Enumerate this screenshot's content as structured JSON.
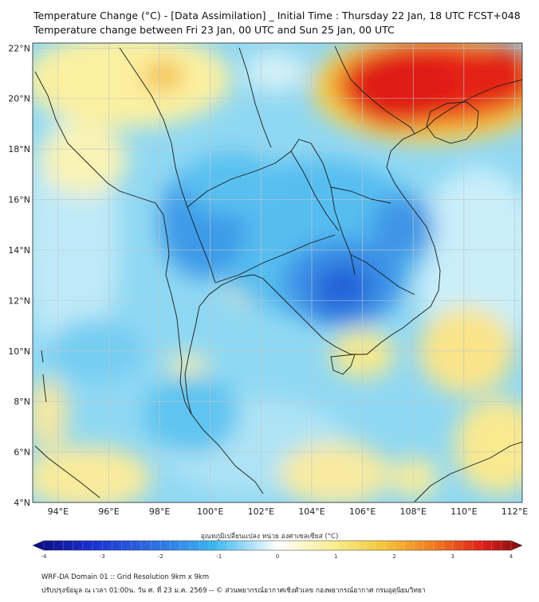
{
  "title": "Temperature Change (°C) - [Data Assimilation] _ Initial Time : Thursday 22 Jan, 18 UTC FCST+048",
  "subtitle": "Temperature change between Fri 23 Jan, 00 UTC and Sun 25 Jan, 00 UTC",
  "colorbar": {
    "title": "อุณหภูมิเปลี่ยนแปลง หน่วย องศาเซลเซียส (°C)",
    "min": -4,
    "max": 4,
    "ticks": [
      "-4",
      "-3",
      "-2",
      "-1",
      "0",
      "1",
      "2",
      "3",
      "4"
    ]
  },
  "axes": {
    "lon_labels": [
      "94°E",
      "96°E",
      "98°E",
      "100°E",
      "102°E",
      "104°E",
      "106°E",
      "108°E",
      "110°E",
      "112°E"
    ],
    "lat_labels": [
      "22°N",
      "20°N",
      "18°N",
      "16°N",
      "14°N",
      "12°N",
      "10°N",
      "8°N",
      "6°N",
      "4°N"
    ],
    "lon_range": [
      93,
      112.3
    ],
    "lat_range": [
      4,
      22.2
    ]
  },
  "footer": {
    "line1": "WRF-DA Domain 01 :: Grid Resolution 9km x 9km",
    "line2": "ปรับปรุงข้อมูล ณ เวลา 01:00น. วัน ศ. ที่ 23 ม.ค. 2569 -- © ส่วนพยากรณ์อากาศเชิงตัวเลข กองพยากรณ์อากาศ กรมอุตุนิยมวิทยา"
  },
  "colors": {
    "deep_blue": "#1f4fd6",
    "blue": "#3c8fe8",
    "cyan": "#5ec8f2",
    "light_cyan": "#bfe9f7",
    "light_yellow": "#fbf3a8",
    "yellow": "#f7df5a",
    "orange": "#f39a2a",
    "red": "#e8201a"
  }
}
